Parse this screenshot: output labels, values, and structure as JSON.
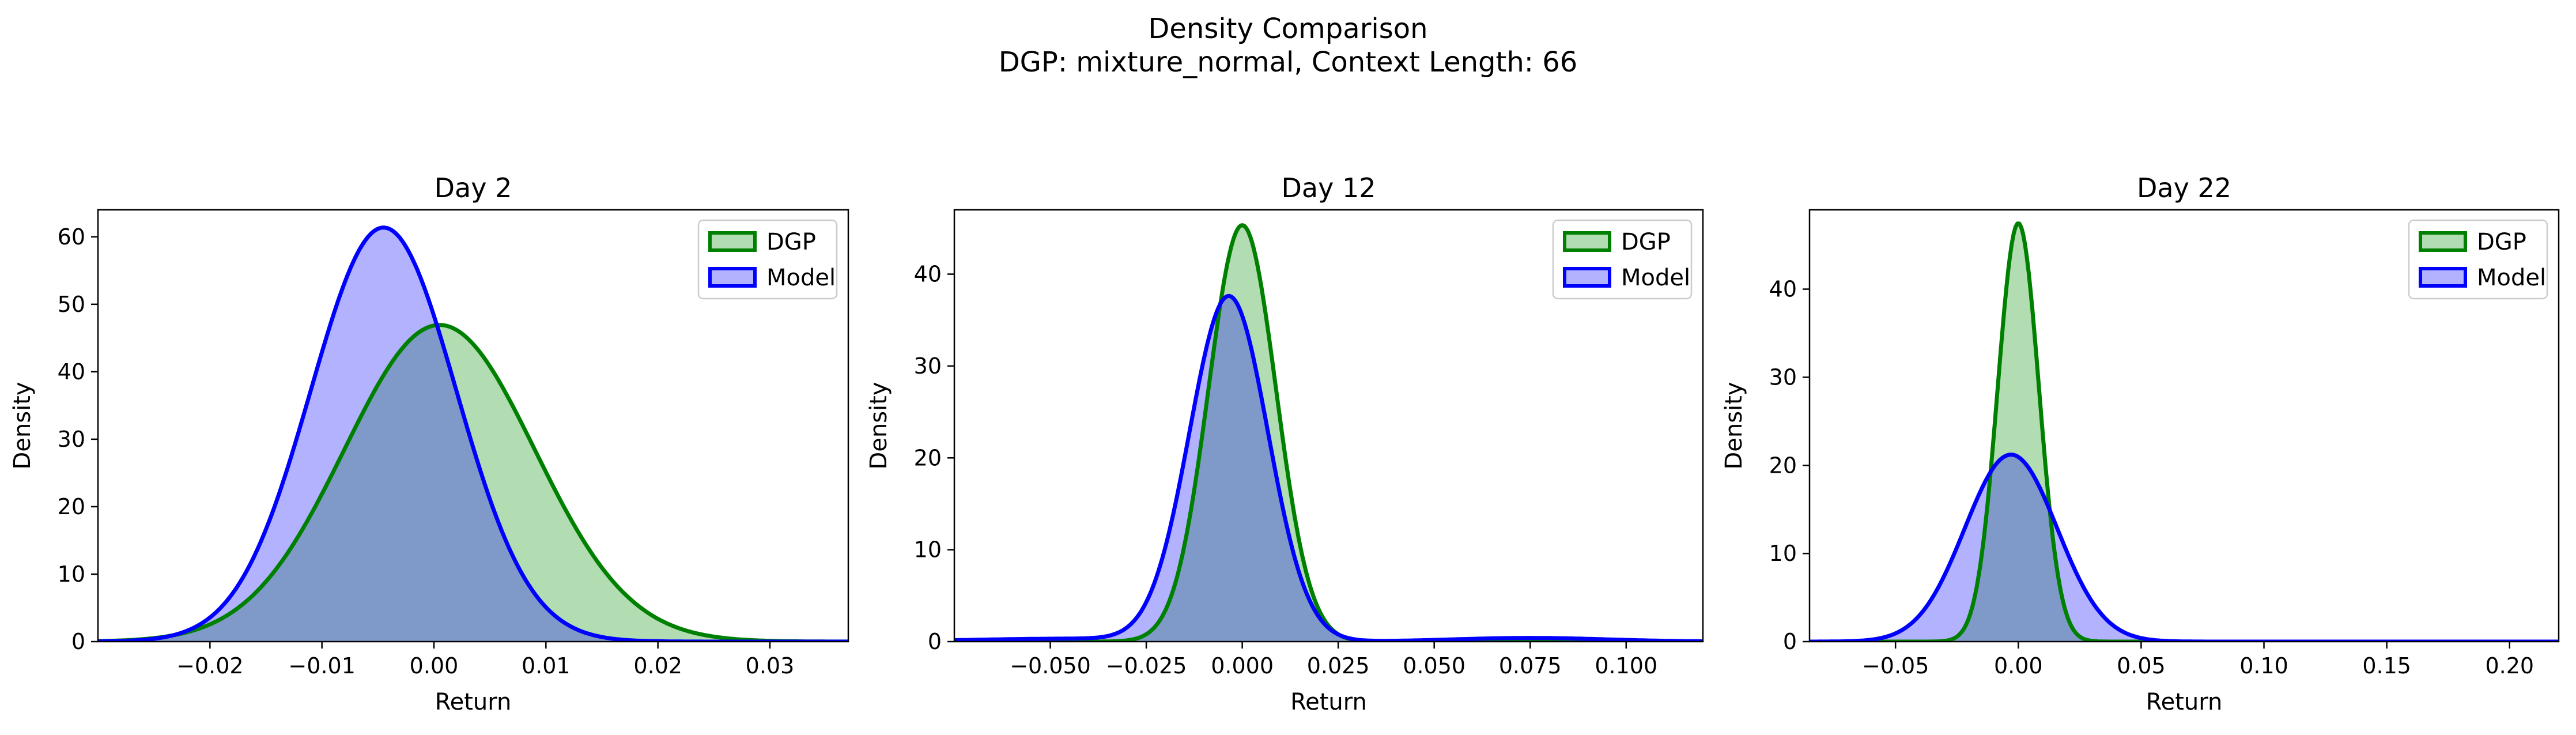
{
  "figure": {
    "title_line1": "Density Comparison",
    "title_line2": "DGP: mixture_normal, Context Length: 66"
  },
  "colors": {
    "dgp_line": "#008000",
    "dgp_fill": "#b2dcb2",
    "model_line": "#0000ff",
    "model_fill": "#b2b2ff",
    "overlap_fill": "#7f9ac8"
  },
  "chart_data": [
    {
      "type": "area",
      "title": "Day 2",
      "xlabel": "Return",
      "ylabel": "Density",
      "xlim": [
        -0.03,
        0.037
      ],
      "ylim": [
        0,
        64
      ],
      "xticks": [
        -0.02,
        -0.01,
        0.0,
        0.01,
        0.02,
        0.03
      ],
      "xtick_labels": [
        "−0.02",
        "−0.01",
        "0.00",
        "0.01",
        "0.02",
        "0.03"
      ],
      "yticks": [
        0,
        10,
        20,
        30,
        40,
        50,
        60
      ],
      "ytick_labels": [
        "0",
        "10",
        "20",
        "30",
        "40",
        "50",
        "60"
      ],
      "legend": "top-right",
      "series": [
        {
          "name": "DGP",
          "components": [
            [
              1.0,
              0.0005,
              0.0085
            ]
          ]
        },
        {
          "name": "Model",
          "components": [
            [
              1.0,
              -0.0045,
              0.0065
            ]
          ]
        }
      ]
    },
    {
      "type": "area",
      "title": "Day 12",
      "xlabel": "Return",
      "ylabel": "Density",
      "xlim": [
        -0.075,
        0.12
      ],
      "ylim": [
        0,
        47
      ],
      "xticks": [
        -0.05,
        -0.025,
        0.0,
        0.025,
        0.05,
        0.075,
        0.1
      ],
      "xtick_labels": [
        "−0.050",
        "−0.025",
        "0.000",
        "0.025",
        "0.050",
        "0.075",
        "0.100"
      ],
      "yticks": [
        0,
        10,
        20,
        30,
        40
      ],
      "ytick_labels": [
        "0",
        "10",
        "20",
        "30",
        "40"
      ],
      "legend": "top-right",
      "series": [
        {
          "name": "DGP",
          "components": [
            [
              1.0,
              0.0,
              0.0088
            ]
          ]
        },
        {
          "name": "Model",
          "components": [
            [
              0.96,
              -0.0035,
              0.0102
            ],
            [
              0.02,
              -0.045,
              0.025
            ],
            [
              0.02,
              0.075,
              0.02
            ]
          ]
        }
      ]
    },
    {
      "type": "area",
      "title": "Day 22",
      "xlabel": "Return",
      "ylabel": "Density",
      "xlim": [
        -0.085,
        0.22
      ],
      "ylim": [
        0,
        49
      ],
      "xticks": [
        -0.05,
        0.0,
        0.05,
        0.1,
        0.15,
        0.2
      ],
      "xtick_labels": [
        "−0.05",
        "0.00",
        "0.05",
        "0.10",
        "0.15",
        "0.20"
      ],
      "yticks": [
        0,
        10,
        20,
        30,
        40
      ],
      "ytick_labels": [
        "0",
        "10",
        "20",
        "30",
        "40"
      ],
      "legend": "top-right",
      "series": [
        {
          "name": "DGP",
          "components": [
            [
              1.0,
              0.0,
              0.0084
            ]
          ]
        },
        {
          "name": "Model",
          "components": [
            [
              1.0,
              -0.003,
              0.0188
            ]
          ]
        }
      ]
    }
  ]
}
